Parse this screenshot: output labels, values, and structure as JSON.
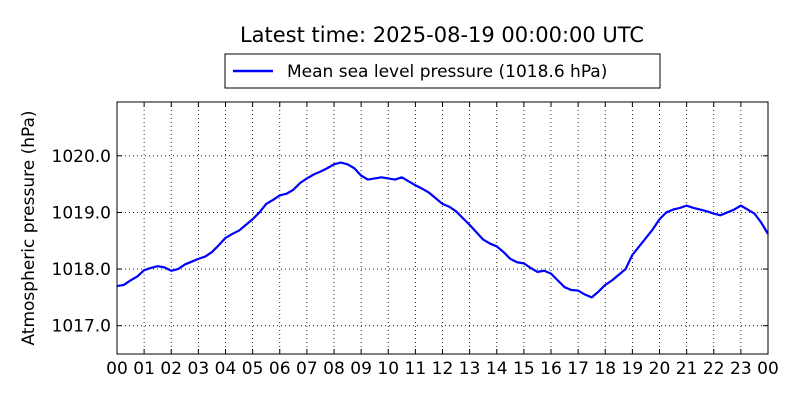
{
  "chart_data": {
    "type": "line",
    "title": "Latest time: 2025-08-19 00:00:00 UTC",
    "xlabel": "",
    "ylabel": "Atmospheric pressure (hPa)",
    "legend_position": "top-center",
    "grid": true,
    "xlim": [
      0,
      24
    ],
    "ylim": [
      1016.5,
      1020.95
    ],
    "x_tick_values": [
      0,
      1,
      2,
      3,
      4,
      5,
      6,
      7,
      8,
      9,
      10,
      11,
      12,
      13,
      14,
      15,
      16,
      17,
      18,
      19,
      20,
      21,
      22,
      23,
      24
    ],
    "x_tick_labels": [
      "00",
      "01",
      "02",
      "03",
      "04",
      "05",
      "06",
      "07",
      "08",
      "09",
      "10",
      "11",
      "12",
      "13",
      "14",
      "15",
      "16",
      "17",
      "18",
      "19",
      "20",
      "21",
      "22",
      "23",
      "00"
    ],
    "y_tick_values": [
      1017.0,
      1018.0,
      1019.0,
      1020.0
    ],
    "y_tick_labels": [
      "1017.0",
      "1018.0",
      "1019.0",
      "1020.0"
    ],
    "series": [
      {
        "name": "Mean sea level pressure (1018.6 hPa)",
        "color": "#0000ff",
        "x": [
          0,
          0.25,
          0.5,
          0.75,
          1,
          1.25,
          1.5,
          1.75,
          2,
          2.25,
          2.5,
          2.75,
          3,
          3.25,
          3.5,
          3.75,
          4,
          4.25,
          4.5,
          4.75,
          5,
          5.25,
          5.5,
          5.75,
          6,
          6.25,
          6.5,
          6.75,
          7,
          7.25,
          7.5,
          7.75,
          8,
          8.25,
          8.5,
          8.75,
          9,
          9.25,
          9.5,
          9.75,
          10,
          10.25,
          10.5,
          10.75,
          11,
          11.25,
          11.5,
          11.75,
          12,
          12.25,
          12.5,
          12.75,
          13,
          13.25,
          13.5,
          13.75,
          14,
          14.25,
          14.5,
          14.75,
          15,
          15.25,
          15.5,
          15.75,
          16,
          16.25,
          16.5,
          16.75,
          17,
          17.25,
          17.5,
          17.75,
          18,
          18.25,
          18.5,
          18.75,
          19,
          19.25,
          19.5,
          19.75,
          20,
          20.25,
          20.5,
          20.75,
          21,
          21.25,
          21.5,
          21.75,
          22,
          22.25,
          22.5,
          22.75,
          23,
          23.25,
          23.5,
          23.75,
          24
        ],
        "y": [
          1017.7,
          1017.72,
          1017.8,
          1017.87,
          1017.98,
          1018.02,
          1018.05,
          1018.03,
          1017.97,
          1018.0,
          1018.08,
          1018.13,
          1018.18,
          1018.22,
          1018.3,
          1018.42,
          1018.55,
          1018.62,
          1018.68,
          1018.78,
          1018.88,
          1019.0,
          1019.15,
          1019.22,
          1019.3,
          1019.33,
          1019.4,
          1019.52,
          1019.6,
          1019.67,
          1019.72,
          1019.78,
          1019.85,
          1019.88,
          1019.85,
          1019.78,
          1019.65,
          1019.58,
          1019.6,
          1019.62,
          1019.6,
          1019.58,
          1019.62,
          1019.55,
          1019.48,
          1019.42,
          1019.35,
          1019.25,
          1019.15,
          1019.1,
          1019.02,
          1018.9,
          1018.78,
          1018.65,
          1018.52,
          1018.45,
          1018.4,
          1018.3,
          1018.18,
          1018.12,
          1018.1,
          1018.02,
          1017.95,
          1017.97,
          1017.92,
          1017.8,
          1017.68,
          1017.63,
          1017.62,
          1017.55,
          1017.5,
          1017.6,
          1017.72,
          1017.8,
          1017.9,
          1018.0,
          1018.25,
          1018.4,
          1018.55,
          1018.7,
          1018.88,
          1019.0,
          1019.05,
          1019.08,
          1019.12,
          1019.08,
          1019.05,
          1019.02,
          1018.98,
          1018.95,
          1019.0,
          1019.05,
          1019.12,
          1019.05,
          1018.98,
          1018.82,
          1018.62
        ]
      }
    ]
  }
}
